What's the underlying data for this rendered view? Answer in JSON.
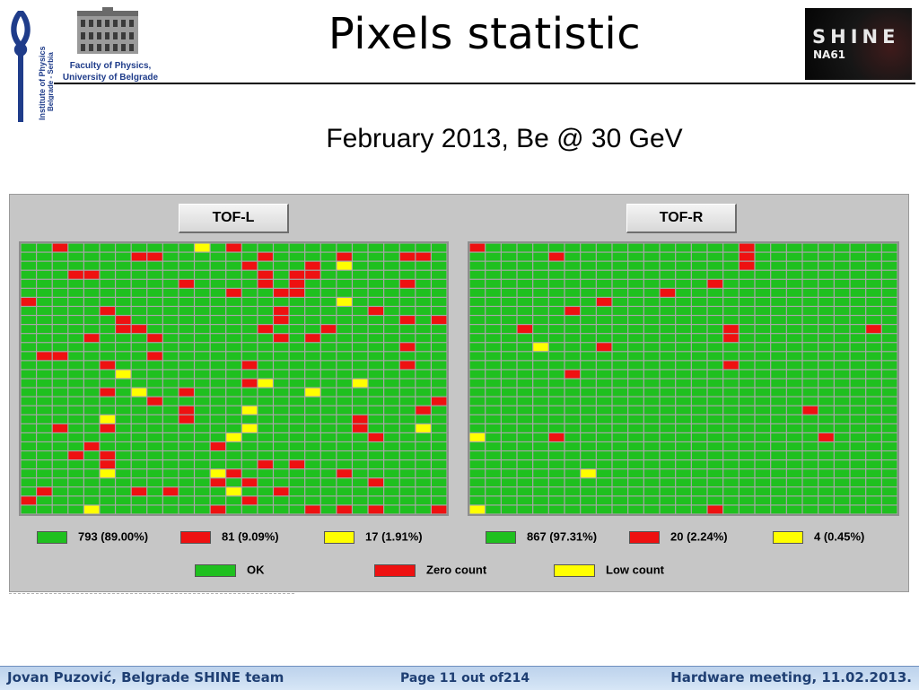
{
  "header": {
    "title": "Pixels statistic",
    "subtitle": "February 2013, Be @ 30 GeV",
    "institute_logo_text": "Institute of Physics Belgrade - Serbia",
    "faculty_line1": "Faculty of Physics,",
    "faculty_line2": "University of Belgrade",
    "shine_logo_text": "SHINE",
    "na61_logo_text": "NA61"
  },
  "colors": {
    "ok": "#1fc01f",
    "zero": "#ee1111",
    "low": "#ffff00",
    "footer_text": "#1f3f73"
  },
  "grid": {
    "rows": 27,
    "cols": 27
  },
  "panels": [
    {
      "label": "TOF-L",
      "red_cells": [
        [
          0,
          2
        ],
        [
          0,
          13
        ],
        [
          1,
          7
        ],
        [
          1,
          8
        ],
        [
          1,
          15
        ],
        [
          1,
          20
        ],
        [
          1,
          24
        ],
        [
          1,
          25
        ],
        [
          2,
          14
        ],
        [
          2,
          18
        ],
        [
          3,
          3
        ],
        [
          3,
          4
        ],
        [
          3,
          15
        ],
        [
          3,
          17
        ],
        [
          3,
          18
        ],
        [
          4,
          10
        ],
        [
          4,
          15
        ],
        [
          4,
          17
        ],
        [
          4,
          24
        ],
        [
          5,
          13
        ],
        [
          5,
          16
        ],
        [
          5,
          17
        ],
        [
          6,
          0
        ],
        [
          7,
          5
        ],
        [
          7,
          16
        ],
        [
          7,
          22
        ],
        [
          8,
          6
        ],
        [
          8,
          16
        ],
        [
          8,
          24
        ],
        [
          8,
          26
        ],
        [
          9,
          6
        ],
        [
          9,
          7
        ],
        [
          9,
          15
        ],
        [
          9,
          19
        ],
        [
          10,
          4
        ],
        [
          10,
          8
        ],
        [
          10,
          16
        ],
        [
          10,
          18
        ],
        [
          11,
          24
        ],
        [
          12,
          1
        ],
        [
          12,
          2
        ],
        [
          12,
          8
        ],
        [
          13,
          5
        ],
        [
          13,
          14
        ],
        [
          13,
          24
        ],
        [
          15,
          14
        ],
        [
          16,
          5
        ],
        [
          16,
          10
        ],
        [
          17,
          8
        ],
        [
          17,
          26
        ],
        [
          18,
          10
        ],
        [
          18,
          25
        ],
        [
          19,
          10
        ],
        [
          19,
          21
        ],
        [
          20,
          2
        ],
        [
          20,
          5
        ],
        [
          20,
          21
        ],
        [
          21,
          22
        ],
        [
          22,
          4
        ],
        [
          22,
          12
        ],
        [
          23,
          3
        ],
        [
          23,
          5
        ],
        [
          24,
          5
        ],
        [
          24,
          15
        ],
        [
          24,
          17
        ],
        [
          25,
          13
        ],
        [
          25,
          20
        ],
        [
          26,
          12
        ],
        [
          26,
          14
        ],
        [
          26,
          22
        ],
        [
          27,
          1
        ],
        [
          27,
          7
        ],
        [
          27,
          9
        ],
        [
          27,
          16
        ],
        [
          28,
          14
        ],
        [
          29,
          12
        ],
        [
          29,
          18
        ],
        [
          29,
          20
        ],
        [
          29,
          22
        ],
        [
          29,
          26
        ],
        [
          28,
          0
        ]
      ],
      "yellow_cells": [
        [
          0,
          11
        ],
        [
          2,
          20
        ],
        [
          6,
          20
        ],
        [
          14,
          6
        ],
        [
          15,
          15
        ],
        [
          15,
          21
        ],
        [
          16,
          7
        ],
        [
          16,
          18
        ],
        [
          18,
          14
        ],
        [
          19,
          5
        ],
        [
          20,
          14
        ],
        [
          20,
          25
        ],
        [
          21,
          13
        ],
        [
          25,
          5
        ],
        [
          25,
          12
        ],
        [
          29,
          4
        ],
        [
          27,
          13
        ]
      ],
      "stats": [
        {
          "text": "793 (89.00%)",
          "color": "ok"
        },
        {
          "text": "81 (9.09%)",
          "color": "zero"
        },
        {
          "text": "17 (1.91%)",
          "color": "low"
        }
      ]
    },
    {
      "label": "TOF-R",
      "red_cells": [
        [
          0,
          0
        ],
        [
          0,
          17
        ],
        [
          1,
          5
        ],
        [
          1,
          17
        ],
        [
          2,
          17
        ],
        [
          4,
          15
        ],
        [
          5,
          12
        ],
        [
          6,
          8
        ],
        [
          7,
          6
        ],
        [
          9,
          3
        ],
        [
          9,
          16
        ],
        [
          9,
          25
        ],
        [
          10,
          16
        ],
        [
          11,
          8
        ],
        [
          13,
          16
        ],
        [
          14,
          6
        ],
        [
          18,
          21
        ],
        [
          21,
          5
        ],
        [
          21,
          22
        ],
        [
          29,
          15
        ]
      ],
      "yellow_cells": [
        [
          11,
          4
        ],
        [
          21,
          0
        ],
        [
          25,
          7
        ],
        [
          29,
          0
        ]
      ],
      "stats": [
        {
          "text": "867 (97.31%)",
          "color": "ok"
        },
        {
          "text": "20 (2.24%)",
          "color": "zero"
        },
        {
          "text": "4 (0.45%)",
          "color": "low"
        }
      ]
    }
  ],
  "legend": [
    {
      "label": "OK",
      "color": "ok"
    },
    {
      "label": "Zero count",
      "color": "zero"
    },
    {
      "label": "Low count",
      "color": "low"
    }
  ],
  "footer": {
    "author": "Jovan Puzović, Belgrade SHINE team",
    "page": "Page 11 out of214",
    "meeting": "Hardware meeting, 11.02.2013."
  }
}
